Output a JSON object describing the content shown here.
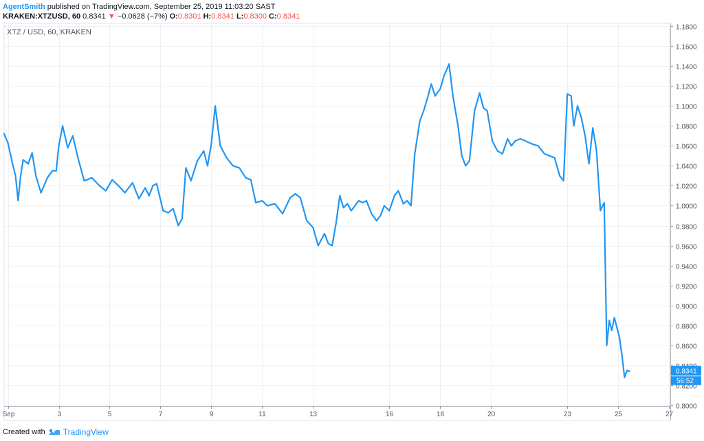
{
  "header": {
    "author": "AgentSmith",
    "published": "published on TradingView.com, September 25, 2019 11:03:20 SAST",
    "symbol": "KRAKEN:XTZUSD, 60",
    "last": "0.8341",
    "arrow": "▼",
    "change": "−0.0628 (−7%)",
    "open_label": "O:",
    "open": "0.8301",
    "high_label": "H:",
    "high": "0.8341",
    "low_label": "L:",
    "low": "0.8300",
    "close_label": "C:",
    "close": "0.8341"
  },
  "chart_label": "XTZ / USD, 60, KRAKEN",
  "footer": {
    "created": "Created with",
    "brand": "TradingView"
  },
  "colors": {
    "line": "#2196f3",
    "grid": "#eef1f5",
    "axis_text": "#50535e",
    "badge": "#2196f3",
    "down": "#ef5350"
  },
  "chart_data": {
    "type": "line",
    "title": "XTZ / USD, 60, KRAKEN",
    "ylim": [
      0.8,
      1.18
    ],
    "y_ticks": [
      "0.8000",
      "0.8200",
      "0.8400",
      "0.8600",
      "0.8800",
      "0.9000",
      "0.9200",
      "0.9400",
      "0.9600",
      "0.9800",
      "1.0000",
      "1.0200",
      "1.0400",
      "1.0600",
      "1.0800",
      "1.1000",
      "1.1200",
      "1.1400",
      "1.1600",
      "1.1800"
    ],
    "x_ticks": [
      {
        "label": "Sep",
        "day": 1
      },
      {
        "label": "3",
        "day": 3
      },
      {
        "label": "5",
        "day": 5
      },
      {
        "label": "7",
        "day": 7
      },
      {
        "label": "9",
        "day": 9
      },
      {
        "label": "11",
        "day": 11
      },
      {
        "label": "13",
        "day": 13
      },
      {
        "label": "16",
        "day": 16
      },
      {
        "label": "18",
        "day": 18
      },
      {
        "label": "20",
        "day": 20
      },
      {
        "label": "23",
        "day": 23
      },
      {
        "label": "25",
        "day": 25
      },
      {
        "label": "27",
        "day": 27
      }
    ],
    "xlim_days": [
      0.85,
      27.05
    ],
    "price_badge": "0.8341",
    "timer_badge": "56:52",
    "grid": true,
    "series": [
      {
        "x": [
          0.85,
          1.0,
          1.2,
          1.3,
          1.4,
          1.5,
          1.6,
          1.8,
          1.95,
          2.1,
          2.3,
          2.55,
          2.75,
          2.9,
          3.0,
          3.15,
          3.35,
          3.55,
          3.75,
          4.0,
          4.3,
          4.6,
          4.85,
          5.1,
          5.35,
          5.6,
          5.9,
          6.15,
          6.4,
          6.55,
          6.7,
          6.85,
          7.1,
          7.3,
          7.5,
          7.7,
          7.85,
          8.0,
          8.2,
          8.45,
          8.7,
          8.85,
          9.0,
          9.15,
          9.35,
          9.6,
          9.85,
          10.1,
          10.35,
          10.55,
          10.75,
          11.0,
          11.2,
          11.5,
          11.8,
          12.1,
          12.3,
          12.5,
          12.75,
          13.0,
          13.2,
          13.45,
          13.6,
          13.75,
          13.9,
          14.05,
          14.2,
          14.35,
          14.5,
          14.65,
          14.8,
          14.95,
          15.1,
          15.3,
          15.5,
          15.65,
          15.8,
          16.0,
          16.2,
          16.35,
          16.55,
          16.7,
          16.85,
          17.0,
          17.2,
          17.35,
          17.5,
          17.65,
          17.8,
          18.0,
          18.15,
          18.35,
          18.5,
          18.7,
          18.85,
          19.0,
          19.15,
          19.35,
          19.55,
          19.7,
          19.85,
          20.05,
          20.25,
          20.45,
          20.65,
          20.8,
          20.95,
          21.15,
          21.35,
          21.6,
          21.85,
          22.1,
          22.3,
          22.5,
          22.7,
          22.85,
          23.0,
          23.15,
          23.25,
          23.4,
          23.55,
          23.7,
          23.85,
          24.0,
          24.15,
          24.3,
          24.45,
          24.55,
          24.65,
          24.75,
          24.85,
          24.95,
          25.05,
          25.15,
          25.25,
          25.35,
          25.45
        ],
        "y": [
          1.072,
          1.063,
          1.04,
          1.03,
          1.005,
          1.03,
          1.046,
          1.042,
          1.053,
          1.03,
          1.013,
          1.028,
          1.035,
          1.035,
          1.06,
          1.08,
          1.058,
          1.07,
          1.048,
          1.025,
          1.028,
          1.02,
          1.015,
          1.026,
          1.02,
          1.013,
          1.023,
          1.007,
          1.018,
          1.01,
          1.02,
          1.022,
          0.995,
          0.993,
          0.997,
          0.98,
          0.987,
          1.038,
          1.025,
          1.045,
          1.055,
          1.04,
          1.062,
          1.1,
          1.06,
          1.048,
          1.04,
          1.038,
          1.028,
          1.026,
          1.003,
          1.005,
          1.0,
          1.002,
          0.992,
          1.008,
          1.012,
          1.008,
          0.985,
          0.978,
          0.96,
          0.972,
          0.962,
          0.96,
          0.982,
          1.01,
          0.998,
          1.002,
          0.995,
          1.0,
          1.005,
          1.003,
          1.005,
          0.992,
          0.985,
          0.99,
          1.0,
          0.995,
          1.01,
          1.015,
          1.002,
          1.005,
          1.0,
          1.052,
          1.085,
          1.095,
          1.108,
          1.122,
          1.11,
          1.117,
          1.13,
          1.142,
          1.11,
          1.08,
          1.05,
          1.04,
          1.045,
          1.095,
          1.113,
          1.098,
          1.095,
          1.065,
          1.055,
          1.052,
          1.067,
          1.06,
          1.065,
          1.067,
          1.065,
          1.062,
          1.06,
          1.052,
          1.05,
          1.048,
          1.03,
          1.025,
          1.112,
          1.11,
          1.08,
          1.1,
          1.088,
          1.07,
          1.042,
          1.078,
          1.055,
          0.995,
          1.003,
          0.86,
          0.885,
          0.875,
          0.888,
          0.878,
          0.868,
          0.85,
          0.828,
          0.835,
          0.834
        ]
      }
    ]
  }
}
